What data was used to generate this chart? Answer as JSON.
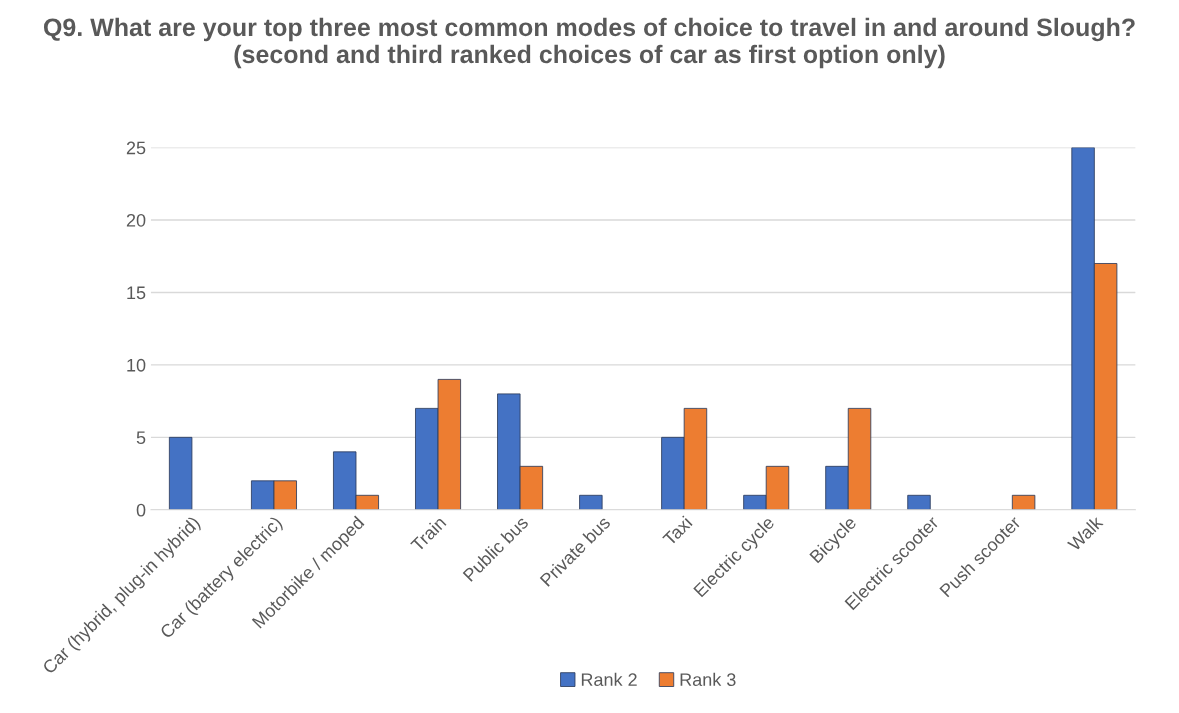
{
  "chart_data": {
    "type": "bar",
    "title": "Q9. What are your top three most common modes of choice to travel in and around Slough? (second and third ranked choices of car as first option only)",
    "categories": [
      "Car (hybrid, plug-in hybrid)",
      "Car (battery electric)",
      "Motorbike / moped",
      "Train",
      "Public bus",
      "Private bus",
      "Taxi",
      "Electric cycle",
      "Bicycle",
      "Electric scooter",
      "Push scooter",
      "Walk"
    ],
    "series": [
      {
        "name": "Rank 2",
        "color": "#4472c4",
        "values": [
          5,
          2,
          4,
          7,
          8,
          1,
          5,
          1,
          3,
          1,
          0,
          25
        ]
      },
      {
        "name": "Rank 3",
        "color": "#ed7d31",
        "values": [
          0,
          2,
          1,
          9,
          3,
          0,
          7,
          3,
          7,
          0,
          1,
          17
        ]
      }
    ],
    "ylim": [
      0,
      25
    ],
    "yticks": [
      0,
      5,
      10,
      15,
      20,
      25
    ],
    "grid": "y",
    "legend": "bottom"
  }
}
